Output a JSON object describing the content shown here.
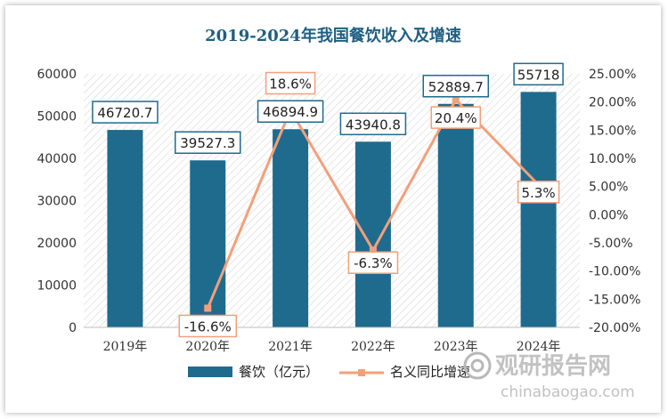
{
  "chart_data": {
    "type": "bar",
    "title": "2019-2024年我国餐饮收入及增速",
    "categories": [
      "2019年",
      "2020年",
      "2021年",
      "2022年",
      "2023年",
      "2024年"
    ],
    "series": [
      {
        "name": "餐饮（亿元）",
        "type": "bar",
        "axis": "left",
        "values": [
          46720.7,
          39527.3,
          46894.9,
          43940.8,
          52889.7,
          55718
        ],
        "labels": [
          "46720.7",
          "39527.3",
          "46894.9",
          "43940.8",
          "52889.7",
          "55718"
        ]
      },
      {
        "name": "名义同比增速",
        "type": "line",
        "axis": "right",
        "values": [
          null,
          -16.6,
          18.6,
          -6.3,
          20.4,
          5.3
        ],
        "labels": [
          "",
          "-16.6%",
          "18.6%",
          "-6.3%",
          "20.4%",
          "5.3%"
        ]
      }
    ],
    "y_left": {
      "ylim": [
        0,
        60000
      ],
      "ticks": [
        0,
        10000,
        20000,
        30000,
        40000,
        50000,
        60000
      ],
      "tick_labels": [
        "0",
        "10000",
        "20000",
        "30000",
        "40000",
        "50000",
        "60000"
      ]
    },
    "y_right": {
      "ylim": [
        -20,
        25
      ],
      "ticks": [
        -20,
        -15,
        -10,
        -5,
        0,
        5,
        10,
        15,
        20,
        25
      ],
      "tick_labels": [
        "-20.00%",
        "-15.00%",
        "-10.00%",
        "-5.00%",
        "0.00%",
        "5.00%",
        "10.00%",
        "15.00%",
        "20.00%",
        "25.00%"
      ]
    },
    "legend": "bottom",
    "colors": {
      "bar": "#1f6b8e",
      "line": "#f2a07b",
      "title": "#1f5f82"
    }
  },
  "watermark": {
    "cn": "观研报告网",
    "en": "chinabaogao.com"
  }
}
